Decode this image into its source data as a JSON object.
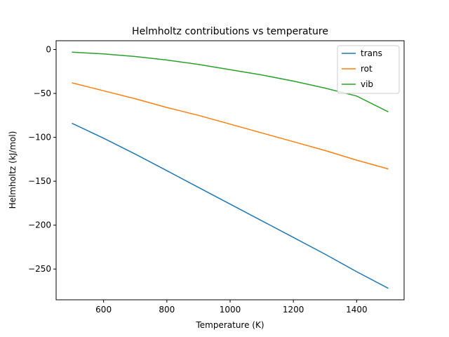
{
  "chart_data": {
    "type": "line",
    "title": "Helmholtz contributions vs temperature",
    "xlabel": "Temperature (K)",
    "ylabel": "Helmholtz (kJ/mol)",
    "xlim": [
      450,
      1550
    ],
    "ylim": [
      -285,
      10
    ],
    "xticks": [
      600,
      800,
      1000,
      1200,
      1400
    ],
    "yticks": [
      0,
      -50,
      -100,
      -150,
      -200,
      -250
    ],
    "ytick_labels": [
      "0",
      "−50",
      "−100",
      "−150",
      "−200",
      "−250"
    ],
    "grid": false,
    "legend_position": "top-right",
    "x": [
      500,
      600,
      700,
      800,
      900,
      1000,
      1100,
      1200,
      1300,
      1400,
      1500
    ],
    "series": [
      {
        "name": "trans",
        "color": "#1f77b4",
        "values": [
          -84,
          -101,
          -119,
          -138,
          -157,
          -176,
          -195,
          -214,
          -233,
          -253,
          -272
        ]
      },
      {
        "name": "rot",
        "color": "#ff7f0e",
        "values": [
          -38,
          -47,
          -56,
          -66,
          -75,
          -85,
          -95,
          -105,
          -115,
          -126,
          -136
        ]
      },
      {
        "name": "vib",
        "color": "#2ca02c",
        "values": [
          -3,
          -5,
          -8,
          -12,
          -17,
          -23,
          -29,
          -36,
          -44,
          -53,
          -71
        ]
      }
    ]
  }
}
